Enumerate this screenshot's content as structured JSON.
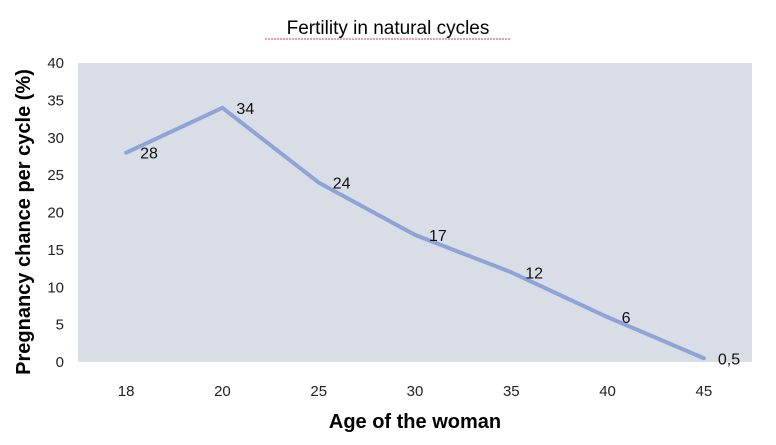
{
  "chart_data": {
    "type": "line",
    "title": "Fertility in natural cycles",
    "xlabel": "Age of the woman",
    "ylabel": "Pregnancy chance per cycle (%)",
    "categories": [
      "18",
      "20",
      "25",
      "30",
      "35",
      "40",
      "45"
    ],
    "series": [
      {
        "values": [
          28,
          34,
          24,
          17,
          12,
          6,
          0.5
        ],
        "labels": [
          "28",
          "34",
          "24",
          "17",
          "12",
          "6",
          "0,5"
        ],
        "color": "#8EA3D6"
      }
    ],
    "yticks": [
      "0",
      "5",
      "10",
      "15",
      "20",
      "25",
      "30",
      "35",
      "40"
    ],
    "ylim": [
      0,
      40
    ],
    "grid": false,
    "plot_background": "#D9DDE6"
  }
}
